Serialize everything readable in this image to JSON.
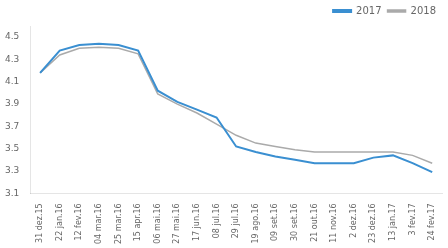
{
  "chart_data": {
    "type": "line",
    "categories": [
      "31 dez.15",
      "22 jan.16",
      "12 fev.16",
      "04 mar.16",
      "25 mar.16",
      "15 apr.16",
      "06 mai.16",
      "27 mai.16",
      "17 jun.16",
      "08 jul.16",
      "29 jul.16",
      "19 ago.16",
      "09 set.16",
      "30 set.16",
      "21 out.16",
      "11 nov.16",
      "2 dez.16",
      "23 dez.16",
      "13 jan.17",
      "3 fev.17",
      "24 fev.17"
    ],
    "series": [
      {
        "name": "2017",
        "color": "#3a8fd1",
        "values": [
          4.18,
          4.38,
          4.43,
          4.44,
          4.43,
          4.38,
          4.02,
          3.92,
          3.85,
          3.78,
          3.52,
          3.47,
          3.43,
          3.4,
          3.37,
          3.37,
          3.37,
          3.42,
          3.44,
          3.37,
          3.29
        ]
      },
      {
        "name": "2018",
        "color": "#aaaaaa",
        "values": [
          4.18,
          4.34,
          4.4,
          4.41,
          4.4,
          4.35,
          3.99,
          3.9,
          3.82,
          3.72,
          3.62,
          3.55,
          3.52,
          3.49,
          3.47,
          3.47,
          3.47,
          3.47,
          3.47,
          3.44,
          3.37
        ]
      }
    ],
    "ylim": [
      3.1,
      4.6
    ],
    "yticks": [
      3.1,
      3.3,
      3.5,
      3.7,
      3.9,
      4.1,
      4.3,
      4.5
    ],
    "grid": false,
    "legend": "upper right"
  }
}
